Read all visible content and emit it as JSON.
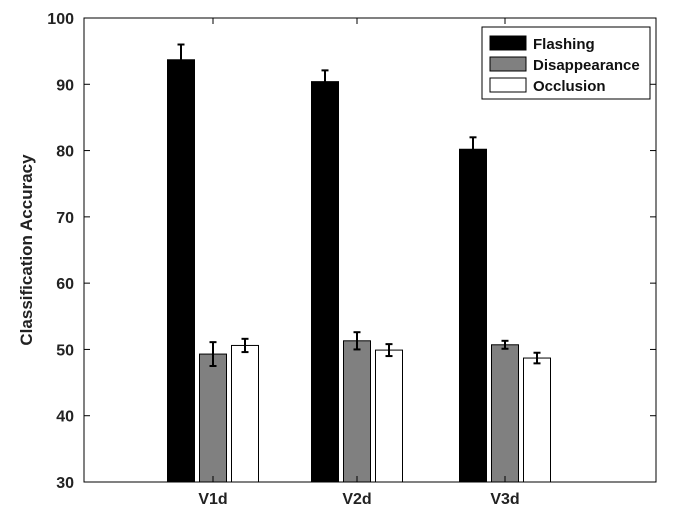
{
  "chart_data": {
    "type": "bar",
    "title": "",
    "xlabel": "",
    "ylabel": "Classification Accuracy",
    "ylim": [
      30,
      100
    ],
    "yticks": [
      30,
      40,
      50,
      60,
      70,
      80,
      90,
      100
    ],
    "categories": [
      "V1d",
      "V2d",
      "V3d"
    ],
    "series": [
      {
        "name": "Flashing",
        "color": "#000000",
        "values": [
          93.7,
          90.4,
          80.2
        ],
        "errors": [
          2.3,
          1.7,
          1.8
        ]
      },
      {
        "name": "Disappearance",
        "color": "#808080",
        "values": [
          49.3,
          51.3,
          50.7
        ],
        "errors": [
          1.8,
          1.3,
          0.6
        ]
      },
      {
        "name": "Occlusion",
        "color": "#ffffff",
        "values": [
          50.6,
          49.9,
          48.7
        ],
        "errors": [
          1.0,
          0.9,
          0.8
        ]
      }
    ],
    "legend": "top-right",
    "grid": false,
    "error_bars": true
  }
}
